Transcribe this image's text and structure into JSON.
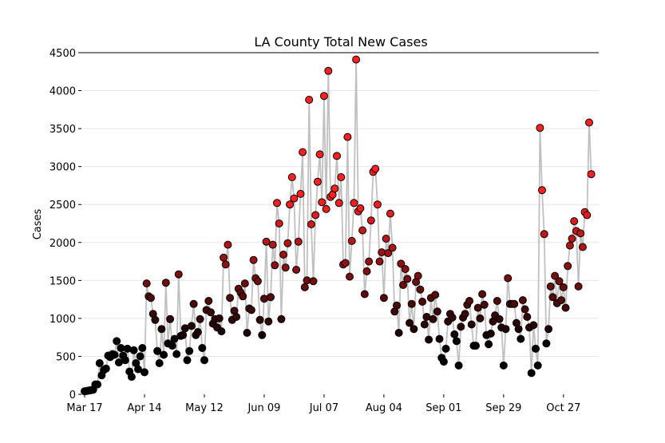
{
  "chart_data": {
    "type": "scatter",
    "title": "LA County Total New Cases",
    "xlabel": "",
    "ylabel": "Cases",
    "x_start": "Mar 17",
    "x_ticks": [
      {
        "day": 0,
        "label": "Mar 17"
      },
      {
        "day": 28,
        "label": "Apr 14"
      },
      {
        "day": 56,
        "label": "May 12"
      },
      {
        "day": 84,
        "label": "Jun 09"
      },
      {
        "day": 112,
        "label": "Jul 07"
      },
      {
        "day": 140,
        "label": "Aug 04"
      },
      {
        "day": 168,
        "label": "Sep 01"
      },
      {
        "day": 196,
        "label": "Sep 29"
      },
      {
        "day": 224,
        "label": "Oct 27"
      }
    ],
    "y_ticks": [
      0,
      500,
      1000,
      1500,
      2000,
      2500,
      3000,
      3500,
      4000,
      4500
    ],
    "ylim": [
      0,
      4500
    ],
    "grid": "horizontal",
    "line_color": "#c0c0c0",
    "marker_edge_color": "#000000",
    "marker_dark_color": "#000000",
    "marker_bright_color": "#ff2020",
    "series": [
      {
        "values": [
          40,
          45,
          50,
          55,
          60,
          130,
          130,
          410,
          250,
          320,
          340,
          510,
          490,
          530,
          520,
          700,
          420,
          610,
          510,
          450,
          600,
          300,
          230,
          580,
          410,
          330,
          500,
          610,
          290,
          1460,
          1290,
          1270,
          1060,
          980,
          570,
          410,
          860,
          520,
          1470,
          670,
          990,
          640,
          730,
          530,
          1580,
          770,
          780,
          870,
          450,
          570,
          900,
          1190,
          780,
          820,
          990,
          610,
          450,
          1110,
          1230,
          1080,
          930,
          990,
          880,
          1000,
          830,
          1800,
          1710,
          1970,
          1270,
          980,
          1100,
          1020,
          1390,
          1340,
          1290,
          1460,
          810,
          1130,
          1110,
          1770,
          1530,
          1490,
          980,
          780,
          1260,
          2010,
          960,
          1280,
          1970,
          1700,
          2520,
          2250,
          990,
          1840,
          1670,
          1990,
          2500,
          2860,
          2580,
          1640,
          2010,
          2640,
          3190,
          1410,
          1500,
          3880,
          2240,
          1490,
          2360,
          2800,
          3160,
          2530,
          3930,
          2440,
          4260,
          2600,
          2630,
          2710,
          3140,
          2520,
          2860,
          1710,
          1730,
          3390,
          1550,
          2020,
          2520,
          4410,
          2410,
          2450,
          2160,
          1320,
          1620,
          1750,
          2290,
          2930,
          2970,
          2500,
          1750,
          1870,
          1270,
          2050,
          1860,
          2380,
          1930,
          1090,
          1170,
          810,
          1720,
          1440,
          1650,
          1520,
          940,
          1190,
          860,
          1480,
          1560,
          1380,
          1220,
          920,
          1020,
          720,
          1270,
          990,
          1310,
          1090,
          730,
          480,
          430,
          600,
          960,
          1060,
          1010,
          790,
          700,
          380,
          890,
          1010,
          1060,
          1180,
          1230,
          920,
          640,
          640,
          1140,
          1000,
          1320,
          1180,
          780,
          660,
          800,
          960,
          1040,
          1230,
          990,
          880,
          380,
          860,
          1530,
          1190,
          1190,
          1190,
          940,
          860,
          730,
          1240,
          1120,
          1020,
          880,
          280,
          910,
          600,
          380,
          3510,
          2690,
          2110,
          670,
          860,
          1420,
          1280,
          1560,
          1200,
          1490,
          1240,
          1410,
          1140,
          1690,
          1960,
          2050,
          2280,
          2150,
          1420,
          2120,
          1940,
          2400,
          2360,
          3580,
          2900
        ]
      }
    ]
  }
}
